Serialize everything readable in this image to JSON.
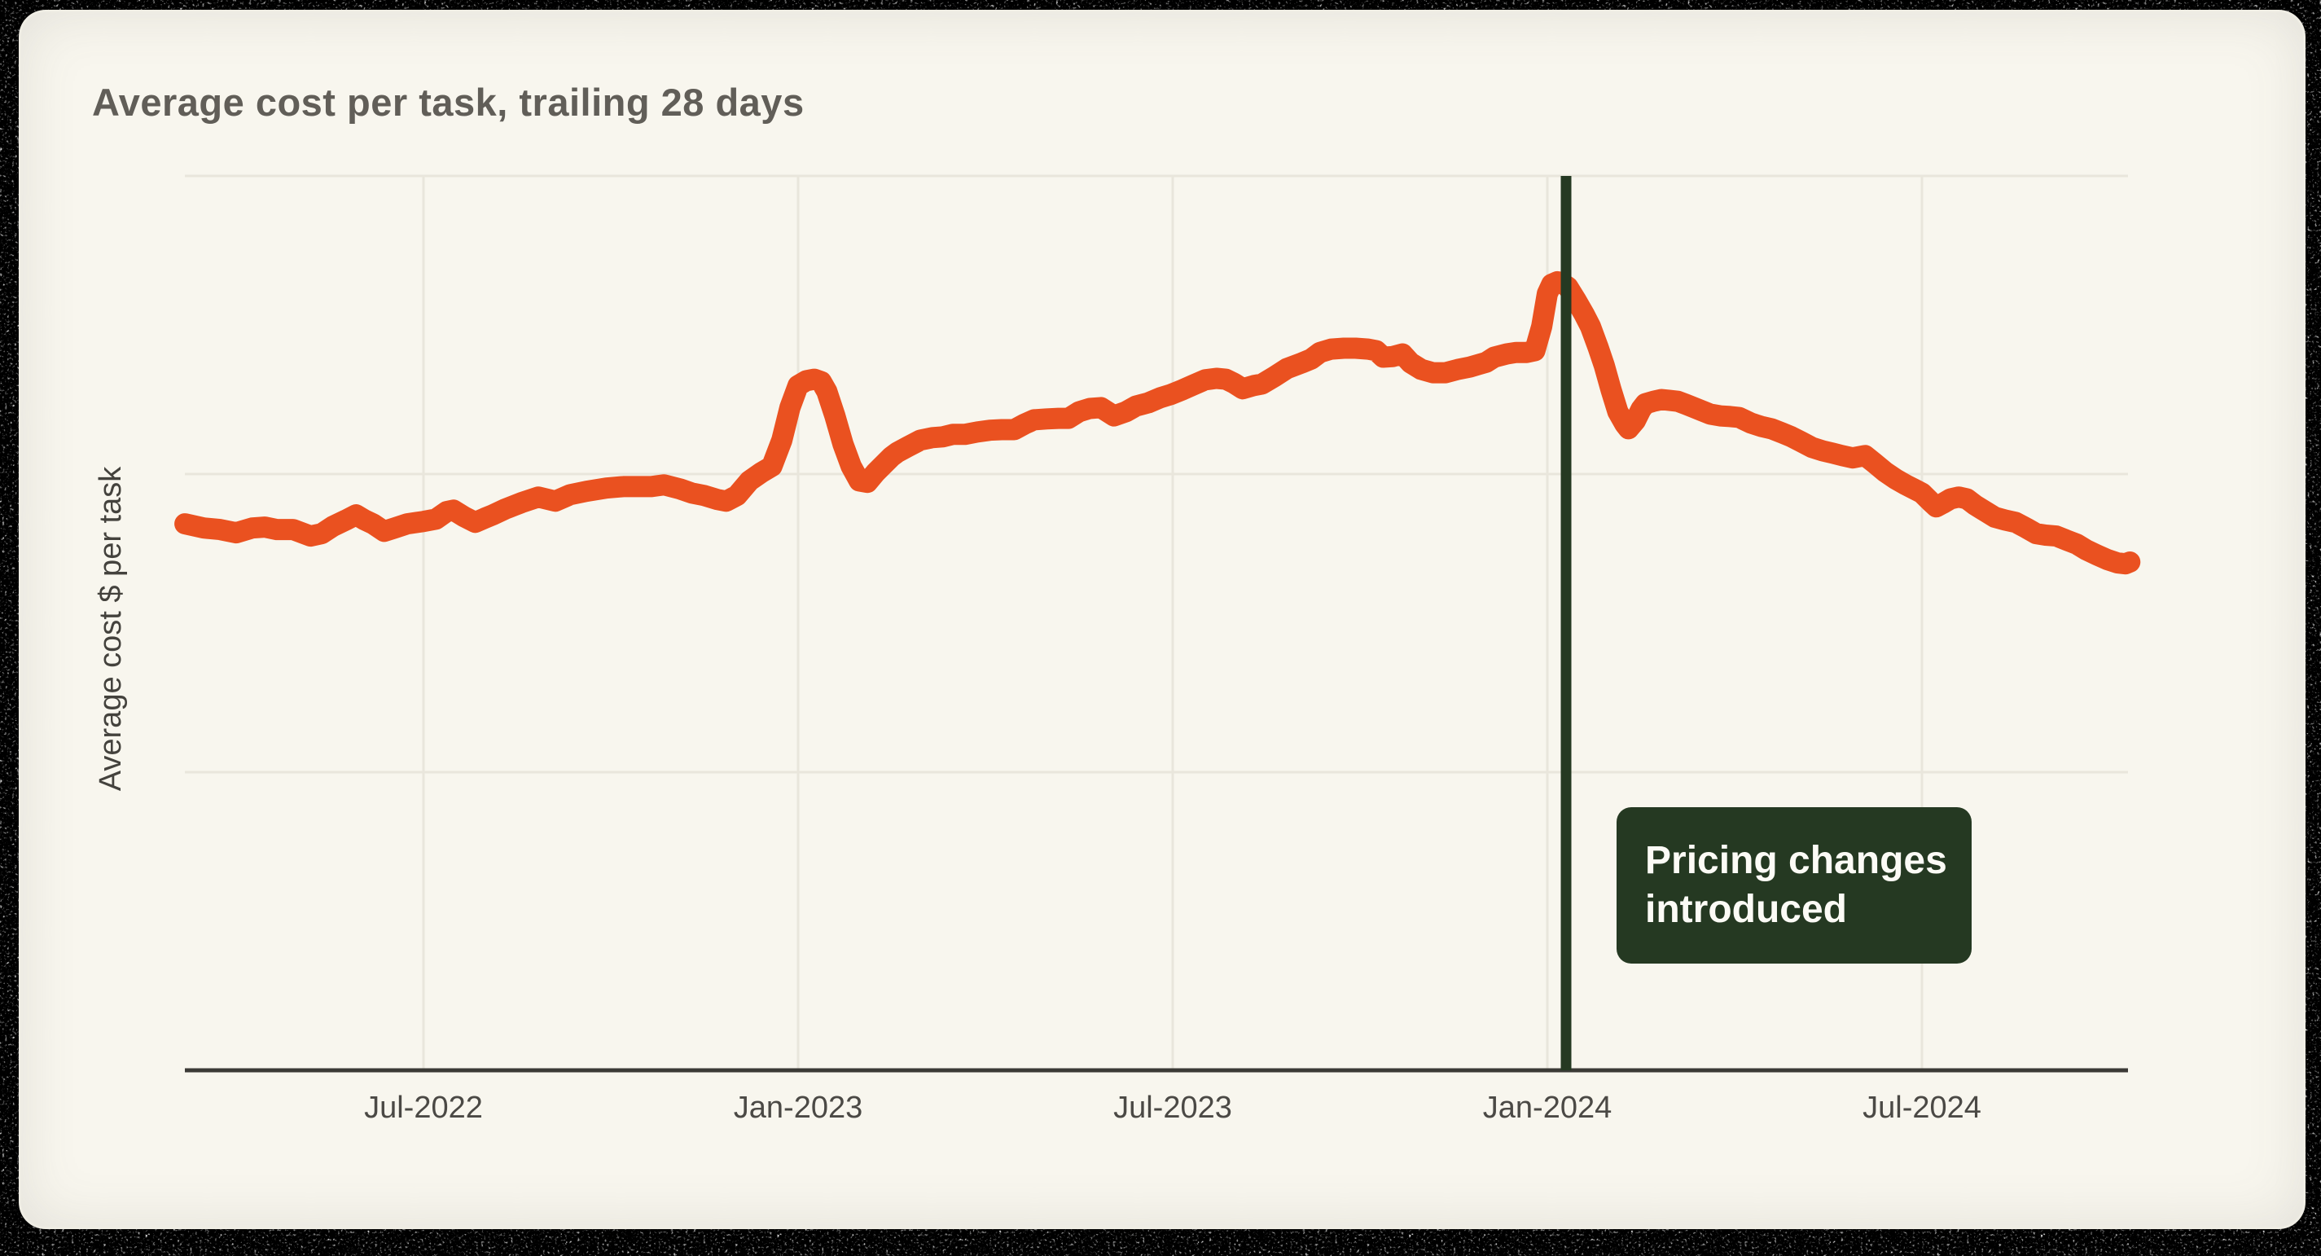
{
  "page": {
    "title": "Average cost per task, trailing 28 days"
  },
  "colors": {
    "card_background": "#f8f6ee",
    "line": "#ea5120",
    "grid": "#e9e6dc",
    "axis": "#3b3a36",
    "tick_text": "#4b4945",
    "title_text": "#615e58",
    "ylabel_text": "#44423d",
    "annotation_fill": "#253922",
    "annotation_text": "#fcfbf6",
    "border_noise": "#000000"
  },
  "chart_data": {
    "type": "line",
    "title": "Average cost per task, trailing 28 days",
    "xlabel": "",
    "ylabel": "Average cost $ per task",
    "grid": "on",
    "legend": "none",
    "x_axis": {
      "unit": "months since Jan-2022",
      "range": [
        2.18,
        33.33
      ],
      "ticks": [
        {
          "label": "Jul-2022",
          "month": 6
        },
        {
          "label": "Jan-2023",
          "month": 12
        },
        {
          "label": "Jul-2023",
          "month": 18
        },
        {
          "label": "Jan-2024",
          "month": 24
        },
        {
          "label": "Jul-2024",
          "month": 30
        }
      ]
    },
    "y_axis": {
      "note": "no numeric tick labels shown in chart; values are relative units where horizontal gridlines sit at 1, 2 and 3",
      "ylim": [
        0,
        3
      ],
      "gridlines_at": [
        1,
        2,
        3
      ]
    },
    "annotation": {
      "text": "Pricing changes introduced",
      "lines": [
        "Pricing changes",
        "introduced"
      ],
      "x_month": 24.3,
      "style": "vertical-line-with-label-box"
    },
    "series": [
      {
        "name": "average cost per task (28-day trailing)",
        "color": "#ea5120",
        "points": [
          [
            2.18,
            1.833
          ],
          [
            2.48,
            1.819
          ],
          [
            2.74,
            1.814
          ],
          [
            3.0,
            1.803
          ],
          [
            3.26,
            1.819
          ],
          [
            3.46,
            1.822
          ],
          [
            3.65,
            1.814
          ],
          [
            3.91,
            1.814
          ],
          [
            4.19,
            1.792
          ],
          [
            4.37,
            1.8
          ],
          [
            4.55,
            1.825
          ],
          [
            4.76,
            1.846
          ],
          [
            4.92,
            1.863
          ],
          [
            5.06,
            1.846
          ],
          [
            5.19,
            1.833
          ],
          [
            5.37,
            1.808
          ],
          [
            5.54,
            1.819
          ],
          [
            5.74,
            1.833
          ],
          [
            6.0,
            1.841
          ],
          [
            6.2,
            1.849
          ],
          [
            6.37,
            1.874
          ],
          [
            6.48,
            1.879
          ],
          [
            6.65,
            1.857
          ],
          [
            6.83,
            1.838
          ],
          [
            6.98,
            1.852
          ],
          [
            7.11,
            1.863
          ],
          [
            7.3,
            1.882
          ],
          [
            7.57,
            1.904
          ],
          [
            7.84,
            1.923
          ],
          [
            8.11,
            1.909
          ],
          [
            8.35,
            1.931
          ],
          [
            8.61,
            1.942
          ],
          [
            8.93,
            1.953
          ],
          [
            9.2,
            1.958
          ],
          [
            9.39,
            1.958
          ],
          [
            9.65,
            1.958
          ],
          [
            9.85,
            1.964
          ],
          [
            10.11,
            1.95
          ],
          [
            10.3,
            1.936
          ],
          [
            10.5,
            1.928
          ],
          [
            10.7,
            1.915
          ],
          [
            10.85,
            1.909
          ],
          [
            11.02,
            1.928
          ],
          [
            11.22,
            1.977
          ],
          [
            11.41,
            2.005
          ],
          [
            11.58,
            2.026
          ],
          [
            11.74,
            2.114
          ],
          [
            11.87,
            2.223
          ],
          [
            12.0,
            2.297
          ],
          [
            12.13,
            2.313
          ],
          [
            12.26,
            2.318
          ],
          [
            12.37,
            2.31
          ],
          [
            12.46,
            2.277
          ],
          [
            12.59,
            2.195
          ],
          [
            12.72,
            2.1
          ],
          [
            12.85,
            2.026
          ],
          [
            12.98,
            1.977
          ],
          [
            13.11,
            1.972
          ],
          [
            13.24,
            2.005
          ],
          [
            13.37,
            2.032
          ],
          [
            13.5,
            2.059
          ],
          [
            13.59,
            2.073
          ],
          [
            13.76,
            2.092
          ],
          [
            13.96,
            2.114
          ],
          [
            14.15,
            2.122
          ],
          [
            14.32,
            2.125
          ],
          [
            14.48,
            2.133
          ],
          [
            14.67,
            2.133
          ],
          [
            14.87,
            2.141
          ],
          [
            15.07,
            2.147
          ],
          [
            15.26,
            2.149
          ],
          [
            15.46,
            2.149
          ],
          [
            15.63,
            2.168
          ],
          [
            15.78,
            2.182
          ],
          [
            15.98,
            2.185
          ],
          [
            16.17,
            2.187
          ],
          [
            16.33,
            2.187
          ],
          [
            16.5,
            2.209
          ],
          [
            16.67,
            2.22
          ],
          [
            16.85,
            2.223
          ],
          [
            17.06,
            2.195
          ],
          [
            17.25,
            2.209
          ],
          [
            17.41,
            2.228
          ],
          [
            17.61,
            2.239
          ],
          [
            17.8,
            2.256
          ],
          [
            17.97,
            2.267
          ],
          [
            18.16,
            2.283
          ],
          [
            18.33,
            2.299
          ],
          [
            18.52,
            2.316
          ],
          [
            18.7,
            2.321
          ],
          [
            18.85,
            2.318
          ],
          [
            18.98,
            2.305
          ],
          [
            19.12,
            2.286
          ],
          [
            19.3,
            2.297
          ],
          [
            19.43,
            2.302
          ],
          [
            19.63,
            2.327
          ],
          [
            19.83,
            2.354
          ],
          [
            20.07,
            2.373
          ],
          [
            20.22,
            2.386
          ],
          [
            20.36,
            2.408
          ],
          [
            20.54,
            2.419
          ],
          [
            20.74,
            2.422
          ],
          [
            20.93,
            2.422
          ],
          [
            21.13,
            2.419
          ],
          [
            21.26,
            2.414
          ],
          [
            21.37,
            2.392
          ],
          [
            21.52,
            2.394
          ],
          [
            21.68,
            2.403
          ],
          [
            21.81,
            2.373
          ],
          [
            21.98,
            2.351
          ],
          [
            22.17,
            2.34
          ],
          [
            22.37,
            2.34
          ],
          [
            22.57,
            2.351
          ],
          [
            22.76,
            2.359
          ],
          [
            22.89,
            2.367
          ],
          [
            23.02,
            2.375
          ],
          [
            23.15,
            2.392
          ],
          [
            23.35,
            2.403
          ],
          [
            23.5,
            2.408
          ],
          [
            23.67,
            2.408
          ],
          [
            23.8,
            2.414
          ],
          [
            23.91,
            2.495
          ],
          [
            24.0,
            2.605
          ],
          [
            24.07,
            2.637
          ],
          [
            24.16,
            2.645
          ],
          [
            24.22,
            2.643
          ],
          [
            24.33,
            2.627
          ],
          [
            24.46,
            2.583
          ],
          [
            24.59,
            2.536
          ],
          [
            24.69,
            2.495
          ],
          [
            24.81,
            2.427
          ],
          [
            24.91,
            2.365
          ],
          [
            25.02,
            2.283
          ],
          [
            25.13,
            2.209
          ],
          [
            25.24,
            2.168
          ],
          [
            25.3,
            2.152
          ],
          [
            25.41,
            2.179
          ],
          [
            25.5,
            2.217
          ],
          [
            25.57,
            2.236
          ],
          [
            25.7,
            2.244
          ],
          [
            25.83,
            2.25
          ],
          [
            25.96,
            2.247
          ],
          [
            26.09,
            2.244
          ],
          [
            26.22,
            2.234
          ],
          [
            26.35,
            2.223
          ],
          [
            26.48,
            2.212
          ],
          [
            26.61,
            2.201
          ],
          [
            26.77,
            2.195
          ],
          [
            26.93,
            2.193
          ],
          [
            27.07,
            2.19
          ],
          [
            27.26,
            2.171
          ],
          [
            27.42,
            2.16
          ],
          [
            27.59,
            2.152
          ],
          [
            27.76,
            2.138
          ],
          [
            27.91,
            2.125
          ],
          [
            28.07,
            2.108
          ],
          [
            28.24,
            2.089
          ],
          [
            28.41,
            2.078
          ],
          [
            28.57,
            2.07
          ],
          [
            28.72,
            2.062
          ],
          [
            28.89,
            2.054
          ],
          [
            29.09,
            2.062
          ],
          [
            29.24,
            2.037
          ],
          [
            29.41,
            2.007
          ],
          [
            29.58,
            1.983
          ],
          [
            29.74,
            1.964
          ],
          [
            29.9,
            1.947
          ],
          [
            30.0,
            1.936
          ],
          [
            30.13,
            1.909
          ],
          [
            30.23,
            1.89
          ],
          [
            30.33,
            1.901
          ],
          [
            30.46,
            1.917
          ],
          [
            30.59,
            1.923
          ],
          [
            30.72,
            1.917
          ],
          [
            30.85,
            1.896
          ],
          [
            31.02,
            1.874
          ],
          [
            31.17,
            1.855
          ],
          [
            31.33,
            1.846
          ],
          [
            31.5,
            1.838
          ],
          [
            31.67,
            1.819
          ],
          [
            31.83,
            1.8
          ],
          [
            31.98,
            1.795
          ],
          [
            32.15,
            1.792
          ],
          [
            32.32,
            1.778
          ],
          [
            32.48,
            1.765
          ],
          [
            32.63,
            1.746
          ],
          [
            32.8,
            1.729
          ],
          [
            32.97,
            1.713
          ],
          [
            33.13,
            1.702
          ],
          [
            33.26,
            1.699
          ],
          [
            33.33,
            1.705
          ]
        ]
      }
    ]
  }
}
